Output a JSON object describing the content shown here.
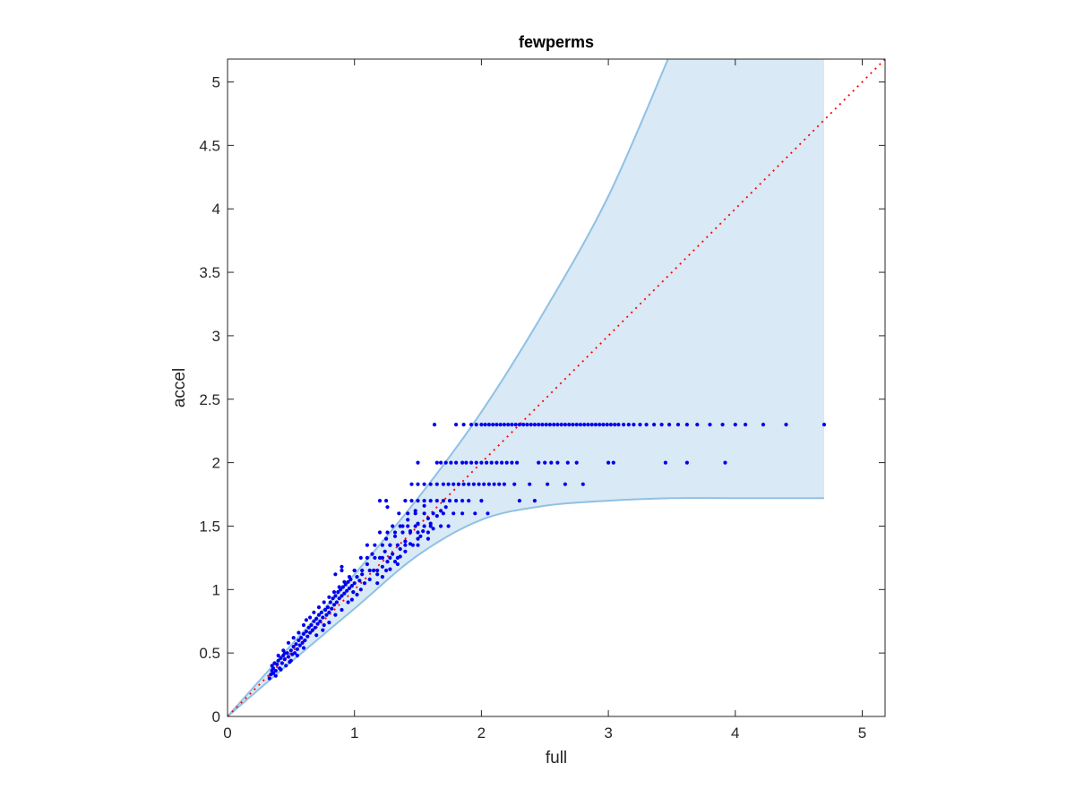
{
  "chart_data": {
    "type": "scatter",
    "title": "fewperms",
    "xlabel": "full",
    "ylabel": "accel",
    "xlim": [
      0,
      5.18
    ],
    "ylim": [
      0,
      5.18
    ],
    "xticks": [
      0,
      1,
      2,
      3,
      4,
      5
    ],
    "yticks": [
      0,
      0.5,
      1,
      1.5,
      2,
      2.5,
      3,
      3.5,
      4,
      4.5,
      5
    ],
    "xtick_labels": [
      "0",
      "1",
      "2",
      "3",
      "4",
      "5"
    ],
    "ytick_labels": [
      "0",
      "0.5",
      "1",
      "1.5",
      "2",
      "2.5",
      "3",
      "3.5",
      "4",
      "4.5",
      "5"
    ],
    "grid": false,
    "colors": {
      "points": "#0000ee",
      "band_fill": "#d9e9f5",
      "band_edge": "#8fc1e3",
      "reference_line": "#ff0000",
      "axes": "#262626"
    },
    "band": {
      "x_max": 4.7,
      "upper": [
        [
          0,
          0
        ],
        [
          0.5,
          0.56
        ],
        [
          1,
          1.12
        ],
        [
          1.5,
          1.72
        ],
        [
          2,
          2.4
        ],
        [
          2.5,
          3.2
        ],
        [
          3,
          4.1
        ],
        [
          3.47,
          5.18
        ]
      ],
      "lower": [
        [
          0,
          0
        ],
        [
          0.5,
          0.43
        ],
        [
          1,
          0.85
        ],
        [
          1.5,
          1.27
        ],
        [
          2,
          1.55
        ],
        [
          2.5,
          1.66
        ],
        [
          3,
          1.7
        ],
        [
          3.5,
          1.72
        ],
        [
          4,
          1.72
        ],
        [
          4.7,
          1.72
        ]
      ]
    },
    "reference_line": {
      "from": [
        0,
        0
      ],
      "to": [
        5.18,
        5.18
      ],
      "style": "dotted"
    },
    "series": [
      {
        "style": "dots",
        "levels": [
          {
            "y": 2.3,
            "x": [
              1.63,
              1.8,
              1.86,
              1.92,
              1.96,
              2.0,
              2.03,
              2.06,
              2.09,
              2.12,
              2.15,
              2.18,
              2.21,
              2.24,
              2.27,
              2.3,
              2.33,
              2.36,
              2.39,
              2.42,
              2.45,
              2.48,
              2.51,
              2.54,
              2.57,
              2.6,
              2.63,
              2.66,
              2.69,
              2.72,
              2.75,
              2.78,
              2.81,
              2.84,
              2.87,
              2.9,
              2.93,
              2.96,
              2.99,
              3.02,
              3.05,
              3.08,
              3.12,
              3.16,
              3.2,
              3.25,
              3.3,
              3.36,
              3.42,
              3.48,
              3.55,
              3.62,
              3.7,
              3.8,
              3.9,
              4.0,
              4.08,
              4.22,
              4.4,
              4.7
            ]
          },
          {
            "y": 2.0,
            "x": [
              1.5,
              1.65,
              1.68,
              1.72,
              1.76,
              1.8,
              1.85,
              1.88,
              1.92,
              1.96,
              2.0,
              2.04,
              2.08,
              2.12,
              2.16,
              2.2,
              2.24,
              2.28,
              2.45,
              2.5,
              2.55,
              2.6,
              2.68,
              2.75,
              3.0,
              3.04,
              3.45,
              3.62,
              3.92
            ]
          },
          {
            "y": 1.83,
            "x": [
              1.45,
              1.5,
              1.55,
              1.6,
              1.65,
              1.7,
              1.74,
              1.78,
              1.82,
              1.86,
              1.9,
              1.94,
              1.98,
              2.02,
              2.06,
              2.1,
              2.14,
              2.18,
              2.26,
              2.38,
              2.52,
              2.66,
              2.8
            ]
          },
          {
            "y": 1.7,
            "x": [
              1.2,
              1.25,
              1.4,
              1.45,
              1.5,
              1.55,
              1.6,
              1.65,
              1.7,
              1.75,
              1.8,
              1.85,
              1.9,
              2.0,
              2.3,
              2.42
            ]
          },
          {
            "y": 1.6,
            "x": [
              1.35,
              1.42,
              1.48,
              1.55,
              1.62,
              1.7,
              1.78,
              1.85,
              1.95,
              2.05
            ]
          },
          {
            "y": 1.5,
            "x": [
              1.3,
              1.36,
              1.42,
              1.48,
              1.55,
              1.6,
              1.68,
              1.74
            ]
          },
          {
            "y": 1.45,
            "x": [
              1.2,
              1.26,
              1.32,
              1.38,
              1.44,
              1.5,
              1.58
            ]
          },
          {
            "y": 1.35,
            "x": [
              1.1,
              1.16,
              1.22,
              1.28,
              1.34,
              1.4,
              1.5
            ]
          },
          {
            "y": 1.25,
            "x": [
              1.05,
              1.1,
              1.16,
              1.22,
              1.28,
              1.34
            ]
          },
          {
            "y": 1.15,
            "x": [
              0.9,
              1.0,
              1.06,
              1.12,
              1.18,
              1.25
            ]
          }
        ],
        "points": [
          [
            0.33,
            0.3
          ],
          [
            0.34,
            0.33
          ],
          [
            0.35,
            0.36
          ],
          [
            0.36,
            0.38
          ],
          [
            0.35,
            0.4
          ],
          [
            0.37,
            0.42
          ],
          [
            0.38,
            0.36
          ],
          [
            0.39,
            0.41
          ],
          [
            0.4,
            0.44
          ],
          [
            0.41,
            0.38
          ],
          [
            0.42,
            0.46
          ],
          [
            0.43,
            0.42
          ],
          [
            0.44,
            0.48
          ],
          [
            0.45,
            0.45
          ],
          [
            0.46,
            0.4
          ],
          [
            0.47,
            0.5
          ],
          [
            0.48,
            0.47
          ],
          [
            0.49,
            0.43
          ],
          [
            0.5,
            0.52
          ],
          [
            0.51,
            0.49
          ],
          [
            0.52,
            0.55
          ],
          [
            0.53,
            0.5
          ],
          [
            0.54,
            0.57
          ],
          [
            0.55,
            0.53
          ],
          [
            0.56,
            0.6
          ],
          [
            0.57,
            0.56
          ],
          [
            0.58,
            0.62
          ],
          [
            0.59,
            0.58
          ],
          [
            0.6,
            0.65
          ],
          [
            0.61,
            0.6
          ],
          [
            0.62,
            0.67
          ],
          [
            0.63,
            0.63
          ],
          [
            0.64,
            0.7
          ],
          [
            0.65,
            0.66
          ],
          [
            0.66,
            0.72
          ],
          [
            0.67,
            0.68
          ],
          [
            0.68,
            0.75
          ],
          [
            0.69,
            0.7
          ],
          [
            0.7,
            0.77
          ],
          [
            0.71,
            0.73
          ],
          [
            0.72,
            0.8
          ],
          [
            0.73,
            0.75
          ],
          [
            0.74,
            0.82
          ],
          [
            0.75,
            0.78
          ],
          [
            0.76,
            0.72
          ],
          [
            0.77,
            0.84
          ],
          [
            0.78,
            0.8
          ],
          [
            0.79,
            0.86
          ],
          [
            0.8,
            0.82
          ],
          [
            0.81,
            0.9
          ],
          [
            0.82,
            0.85
          ],
          [
            0.83,
            0.93
          ],
          [
            0.84,
            0.88
          ],
          [
            0.85,
            0.95
          ],
          [
            0.86,
            0.9
          ],
          [
            0.87,
            0.98
          ],
          [
            0.88,
            0.93
          ],
          [
            0.89,
            1.0
          ],
          [
            0.9,
            0.95
          ],
          [
            0.91,
            1.02
          ],
          [
            0.92,
            0.97
          ],
          [
            0.93,
            1.04
          ],
          [
            0.94,
            0.99
          ],
          [
            0.95,
            1.06
          ],
          [
            0.96,
            1.01
          ],
          [
            0.97,
            1.08
          ],
          [
            0.98,
            1.03
          ],
          [
            0.99,
            0.98
          ],
          [
            1.0,
            1.05
          ],
          [
            1.02,
            1.1
          ],
          [
            1.04,
            1.07
          ],
          [
            1.06,
            1.12
          ],
          [
            0.38,
            0.32
          ],
          [
            0.42,
            0.37
          ],
          [
            0.45,
            0.5
          ],
          [
            0.5,
            0.44
          ],
          [
            0.55,
            0.48
          ],
          [
            0.6,
            0.54
          ],
          [
            0.62,
            0.76
          ],
          [
            0.65,
            0.78
          ],
          [
            0.7,
            0.64
          ],
          [
            0.75,
            0.68
          ],
          [
            0.8,
            0.74
          ],
          [
            0.85,
            0.8
          ],
          [
            0.9,
            0.84
          ],
          [
            0.95,
            0.9
          ],
          [
            0.98,
            0.92
          ],
          [
            1.02,
            0.96
          ],
          [
            0.36,
            0.34
          ],
          [
            0.4,
            0.48
          ],
          [
            0.44,
            0.52
          ],
          [
            0.48,
            0.58
          ],
          [
            0.52,
            0.62
          ],
          [
            0.56,
            0.66
          ],
          [
            0.6,
            0.72
          ],
          [
            0.68,
            0.82
          ],
          [
            0.72,
            0.86
          ],
          [
            0.76,
            0.9
          ],
          [
            0.8,
            0.94
          ],
          [
            0.84,
            0.98
          ],
          [
            0.88,
            1.02
          ],
          [
            0.92,
            1.06
          ],
          [
            0.96,
            1.1
          ],
          [
            1.1,
            1.2
          ],
          [
            1.12,
            1.08
          ],
          [
            1.15,
            1.15
          ],
          [
            1.18,
            1.12
          ],
          [
            1.2,
            1.25
          ],
          [
            1.22,
            1.18
          ],
          [
            1.24,
            1.3
          ],
          [
            1.25,
            1.4
          ],
          [
            1.26,
            1.22
          ],
          [
            1.28,
            1.35
          ],
          [
            1.3,
            1.28
          ],
          [
            1.32,
            1.42
          ],
          [
            1.34,
            1.2
          ],
          [
            1.36,
            1.32
          ],
          [
            1.38,
            1.5
          ],
          [
            1.4,
            1.38
          ],
          [
            1.42,
            1.55
          ],
          [
            1.44,
            1.46
          ],
          [
            1.46,
            1.35
          ],
          [
            1.48,
            1.62
          ],
          [
            1.5,
            1.52
          ],
          [
            1.52,
            1.42
          ],
          [
            1.55,
            1.66
          ],
          [
            1.58,
            1.56
          ],
          [
            1.62,
            1.48
          ],
          [
            1.65,
            1.58
          ],
          [
            1.58,
            1.4
          ],
          [
            1.26,
            1.65
          ],
          [
            0.9,
            1.18
          ],
          [
            0.85,
            1.12
          ],
          [
            1.0,
            1.15
          ],
          [
            1.05,
            1.0
          ],
          [
            1.08,
            1.05
          ],
          [
            1.14,
            1.28
          ],
          [
            1.18,
            1.05
          ],
          [
            1.22,
            1.1
          ],
          [
            1.28,
            1.16
          ],
          [
            1.32,
            1.22
          ],
          [
            1.36,
            1.26
          ],
          [
            1.4,
            1.3
          ],
          [
            1.44,
            1.36
          ],
          [
            1.5,
            1.4
          ],
          [
            1.54,
            1.46
          ],
          [
            1.6,
            1.52
          ],
          [
            1.68,
            1.62
          ],
          [
            1.72,
            1.65
          ]
        ]
      }
    ]
  }
}
